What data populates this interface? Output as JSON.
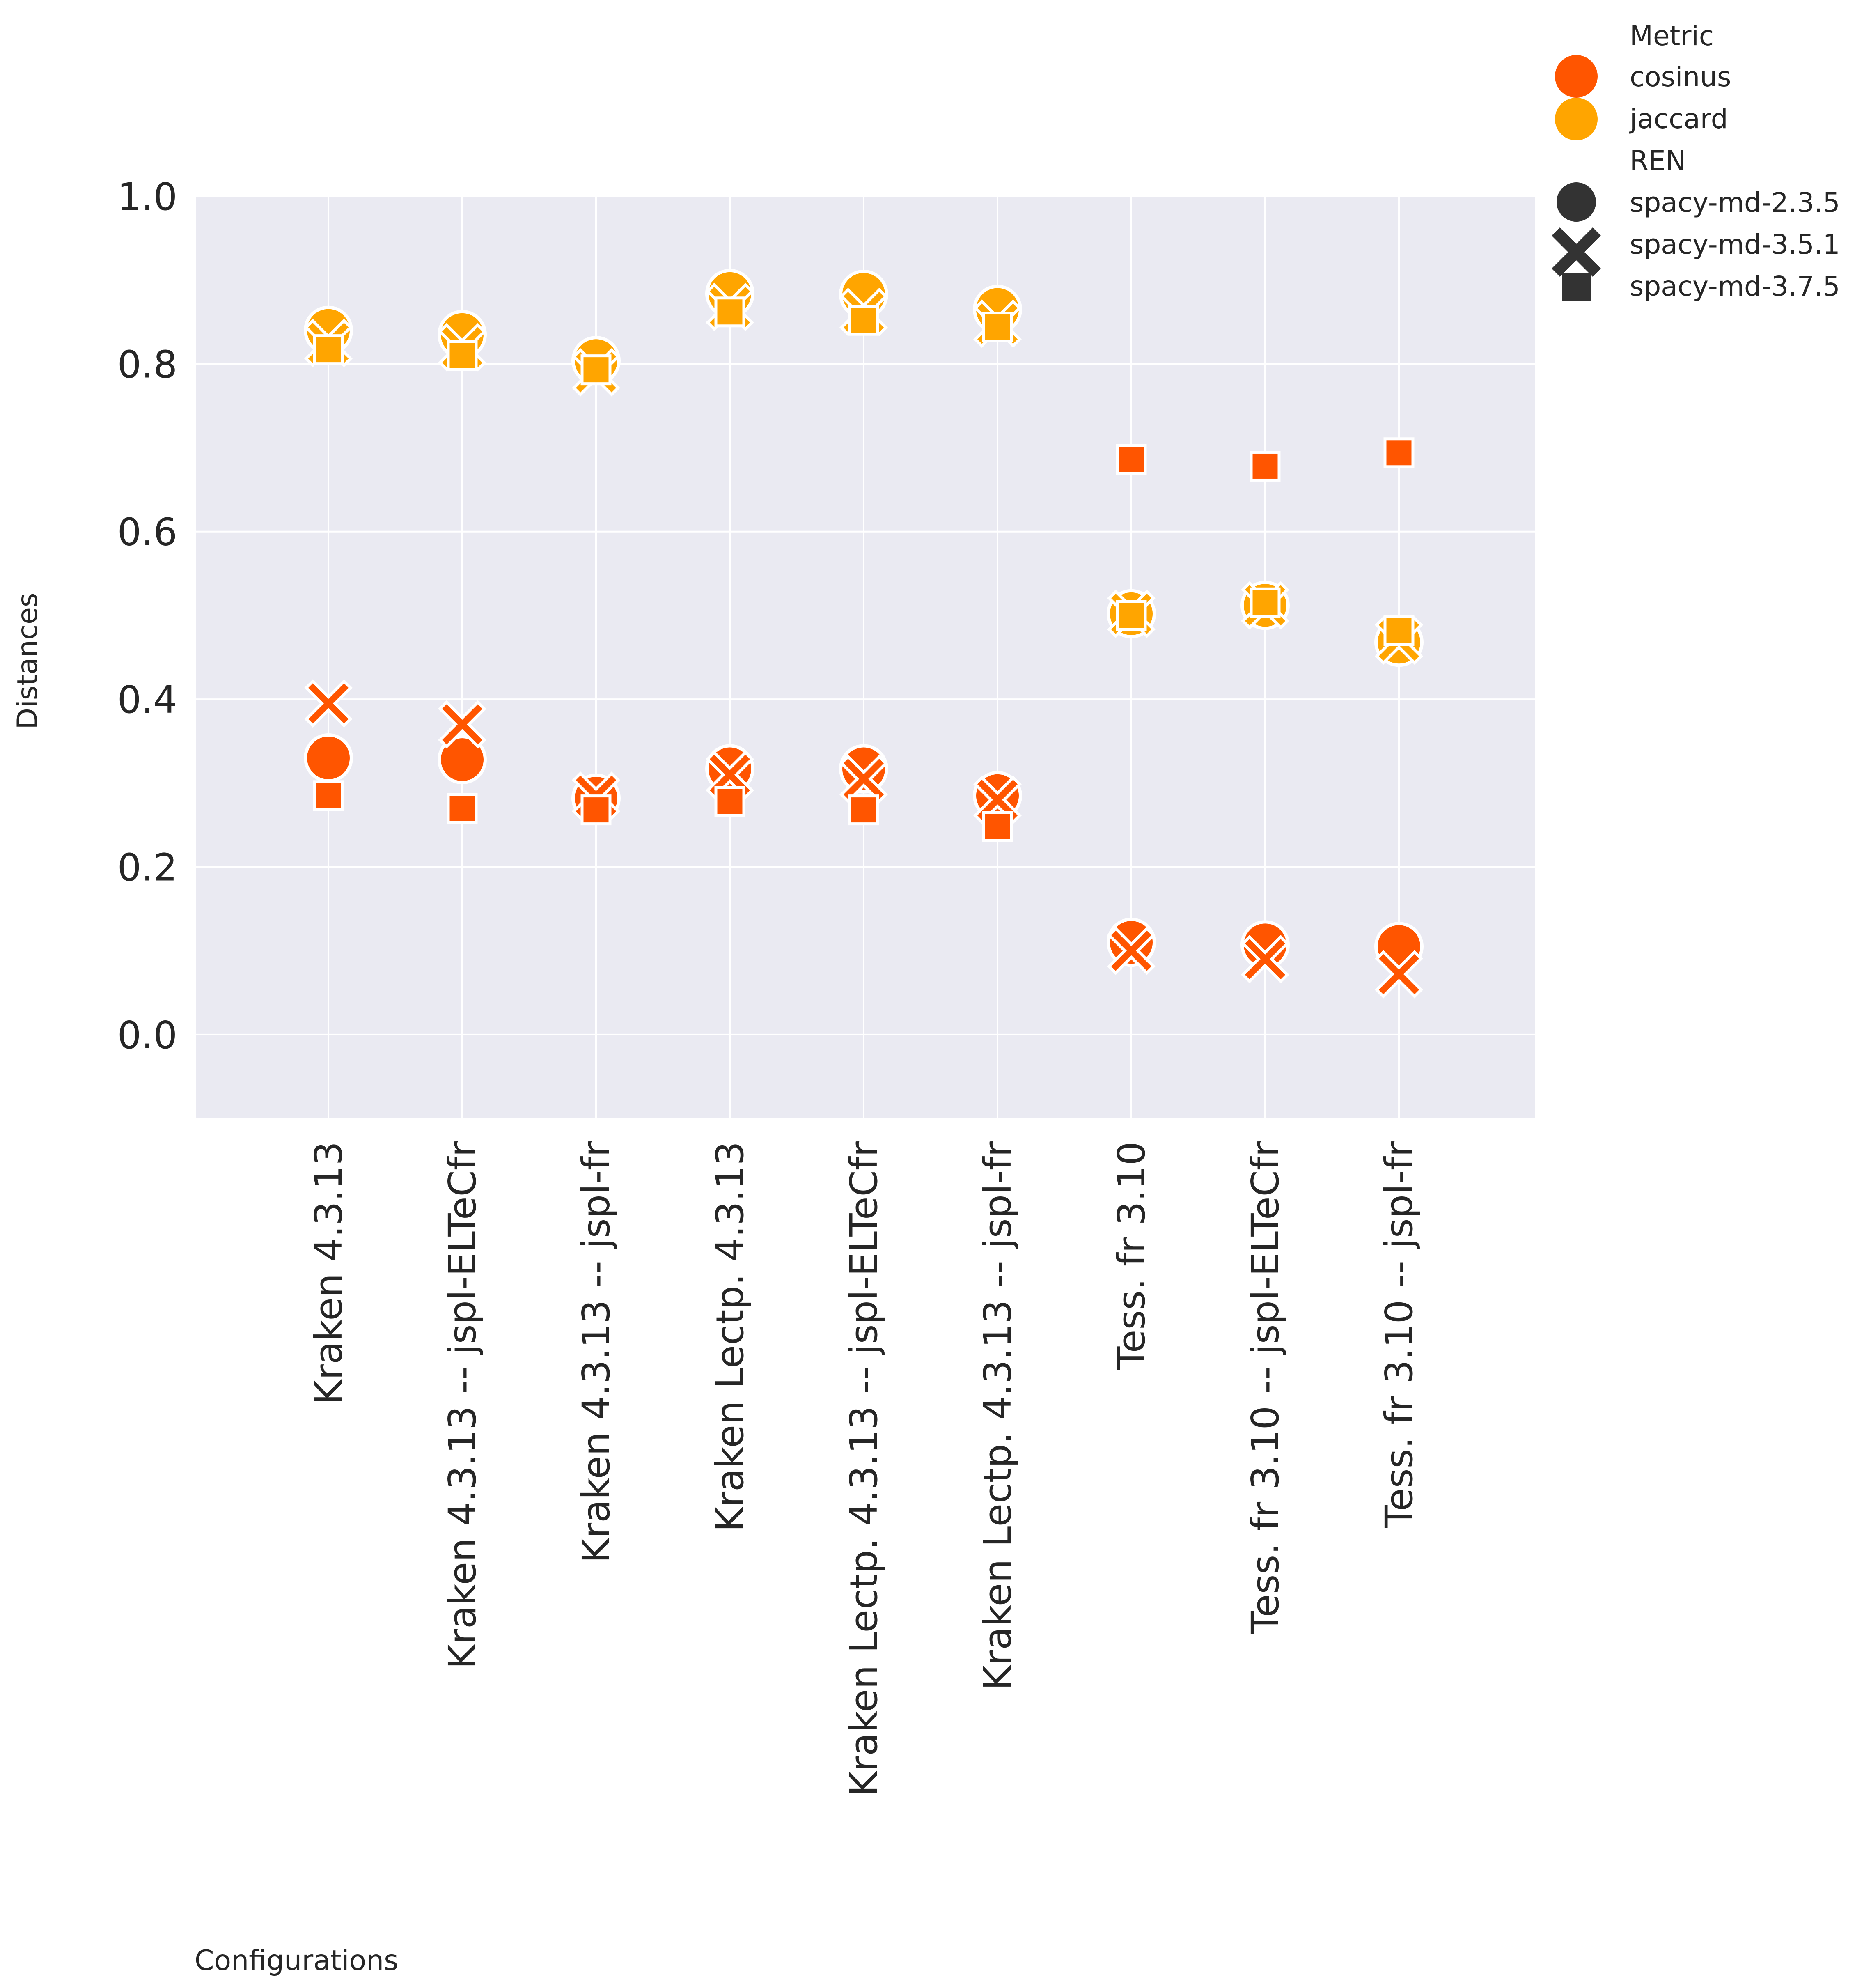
{
  "chart_data": {
    "type": "scatter",
    "xlabel": "Configurations",
    "ylabel": "Distances",
    "ylim": [
      -0.1,
      1.0
    ],
    "yticks": [
      "0.0",
      "0.2",
      "0.4",
      "0.6",
      "0.8",
      "1.0"
    ],
    "categories": [
      "Kraken 4.3.13",
      "Kraken 4.3.13 -- jspl-ELTeCfr",
      "Kraken 4.3.13 -- jspl-fr",
      "Kraken Lectp. 4.3.13",
      "Kraken Lectp. 4.3.13 -- jspl-ELTeCfr",
      "Kraken Lectp. 4.3.13 -- jspl-fr",
      "Tess. fr 3.10",
      "Tess. fr 3.10 -- jspl-ELTeCfr",
      "Tess. fr 3.10 -- jspl-fr"
    ],
    "grid": true,
    "legend": {
      "placement": "outside top-right",
      "hue_title": "Metric",
      "style_title": "REN",
      "metrics": [
        {
          "name": "cosinus",
          "color": "#ff5500"
        },
        {
          "name": "jaccard",
          "color": "#ffa500"
        }
      ],
      "rens": [
        {
          "name": "spacy-md-2.3.5",
          "marker": "circle"
        },
        {
          "name": "spacy-md-3.5.1",
          "marker": "x"
        },
        {
          "name": "spacy-md-3.7.5",
          "marker": "square"
        }
      ]
    },
    "series": [
      {
        "metric": "cosinus",
        "ren": "spacy-md-2.3.5",
        "values": [
          0.33,
          0.328,
          0.282,
          0.317,
          0.317,
          0.285,
          0.11,
          0.107,
          0.105
        ]
      },
      {
        "metric": "cosinus",
        "ren": "spacy-md-3.5.1",
        "values": [
          0.395,
          0.37,
          0.285,
          0.31,
          0.305,
          0.28,
          0.1,
          0.09,
          0.072
        ]
      },
      {
        "metric": "cosinus",
        "ren": "spacy-md-3.7.5",
        "values": [
          0.285,
          0.27,
          0.268,
          0.278,
          0.268,
          0.248,
          0.686,
          0.678,
          0.694
        ]
      },
      {
        "metric": "jaccard",
        "ren": "spacy-md-2.3.5",
        "values": [
          0.84,
          0.835,
          0.804,
          0.884,
          0.883,
          0.865,
          0.502,
          0.512,
          0.468
        ]
      },
      {
        "metric": "jaccard",
        "ren": "spacy-md-3.5.1",
        "values": [
          0.825,
          0.82,
          0.79,
          0.868,
          0.862,
          0.848,
          0.502,
          0.512,
          0.47
        ]
      },
      {
        "metric": "jaccard",
        "ren": "spacy-md-3.7.5",
        "values": [
          0.817,
          0.81,
          0.793,
          0.862,
          0.852,
          0.844,
          0.5,
          0.515,
          0.482
        ]
      }
    ]
  }
}
